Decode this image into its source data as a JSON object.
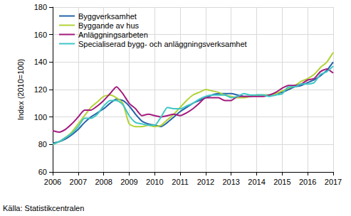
{
  "chart_data": {
    "type": "line",
    "y_label": "Index (2010=100)",
    "source": "Källa: Statistikcentralen",
    "x": [
      2006,
      2006.25,
      2006.5,
      2006.75,
      2007,
      2007.25,
      2007.5,
      2007.75,
      2008,
      2008.25,
      2008.5,
      2008.75,
      2009,
      2009.25,
      2009.5,
      2009.75,
      2010,
      2010.25,
      2010.5,
      2010.75,
      2011,
      2011.25,
      2011.5,
      2011.75,
      2012,
      2012.25,
      2012.5,
      2012.75,
      2013,
      2013.25,
      2013.5,
      2013.75,
      2014,
      2014.25,
      2014.5,
      2014.75,
      2015,
      2015.25,
      2015.5,
      2015.75,
      2016,
      2016.25,
      2016.5,
      2016.75,
      2017
    ],
    "series": [
      {
        "name": "Byggverksamhet",
        "color": "#2563a8",
        "values": [
          81,
          82,
          84,
          87,
          91,
          96,
          100,
          103,
          106,
          110,
          113,
          112,
          108,
          102,
          97,
          95,
          94,
          93,
          96,
          100,
          104,
          107,
          110,
          112,
          114,
          116,
          117,
          117,
          117,
          116,
          115,
          115,
          116,
          116,
          116,
          117,
          118,
          120,
          122,
          123,
          125,
          127,
          130,
          134,
          140
        ]
      },
      {
        "name": "Byggande av hus",
        "color": "#b2d235",
        "values": [
          80,
          82,
          85,
          89,
          95,
          101,
          107,
          111,
          115,
          116,
          114,
          110,
          95,
          93,
          93,
          94,
          93,
          94,
          98,
          102,
          107,
          112,
          116,
          118,
          120,
          119,
          118,
          116,
          115,
          114,
          114,
          115,
          116,
          116,
          116,
          117,
          119,
          121,
          123,
          126,
          128,
          131,
          136,
          140,
          147
        ]
      },
      {
        "name": "Anläggningsarbeten",
        "color": "#a31a7d",
        "values": [
          90,
          89,
          91,
          95,
          100,
          105,
          105,
          108,
          112,
          117,
          122,
          117,
          110,
          106,
          101,
          102,
          101,
          100,
          101,
          102,
          101,
          103,
          106,
          110,
          114,
          114,
          114,
          112,
          112,
          115,
          115,
          115,
          115,
          115,
          116,
          118,
          121,
          123,
          123,
          124,
          127,
          128,
          133,
          135,
          132
        ]
      },
      {
        "name": "Specialiserad bygg- och anläggningsverksamhet",
        "color": "#3ec6c6",
        "values": [
          80,
          82,
          85,
          88,
          93,
          99,
          99,
          102,
          108,
          112,
          112,
          109,
          101,
          96,
          95,
          94,
          94,
          100,
          107,
          106,
          106,
          108,
          110,
          113,
          115,
          116,
          116,
          116,
          114,
          115,
          117,
          116,
          116,
          116,
          115,
          116,
          117,
          122,
          122,
          124,
          124,
          125,
          131,
          133,
          137
        ]
      }
    ],
    "xlim": [
      2006,
      2017
    ],
    "xticks": [
      2006,
      2007,
      2008,
      2009,
      2010,
      2011,
      2012,
      2013,
      2014,
      2015,
      2016,
      2017
    ],
    "ylim": [
      60,
      180
    ],
    "yticks": [
      60,
      80,
      100,
      120,
      140,
      160,
      180
    ],
    "grid": true,
    "legend": "top-left"
  }
}
